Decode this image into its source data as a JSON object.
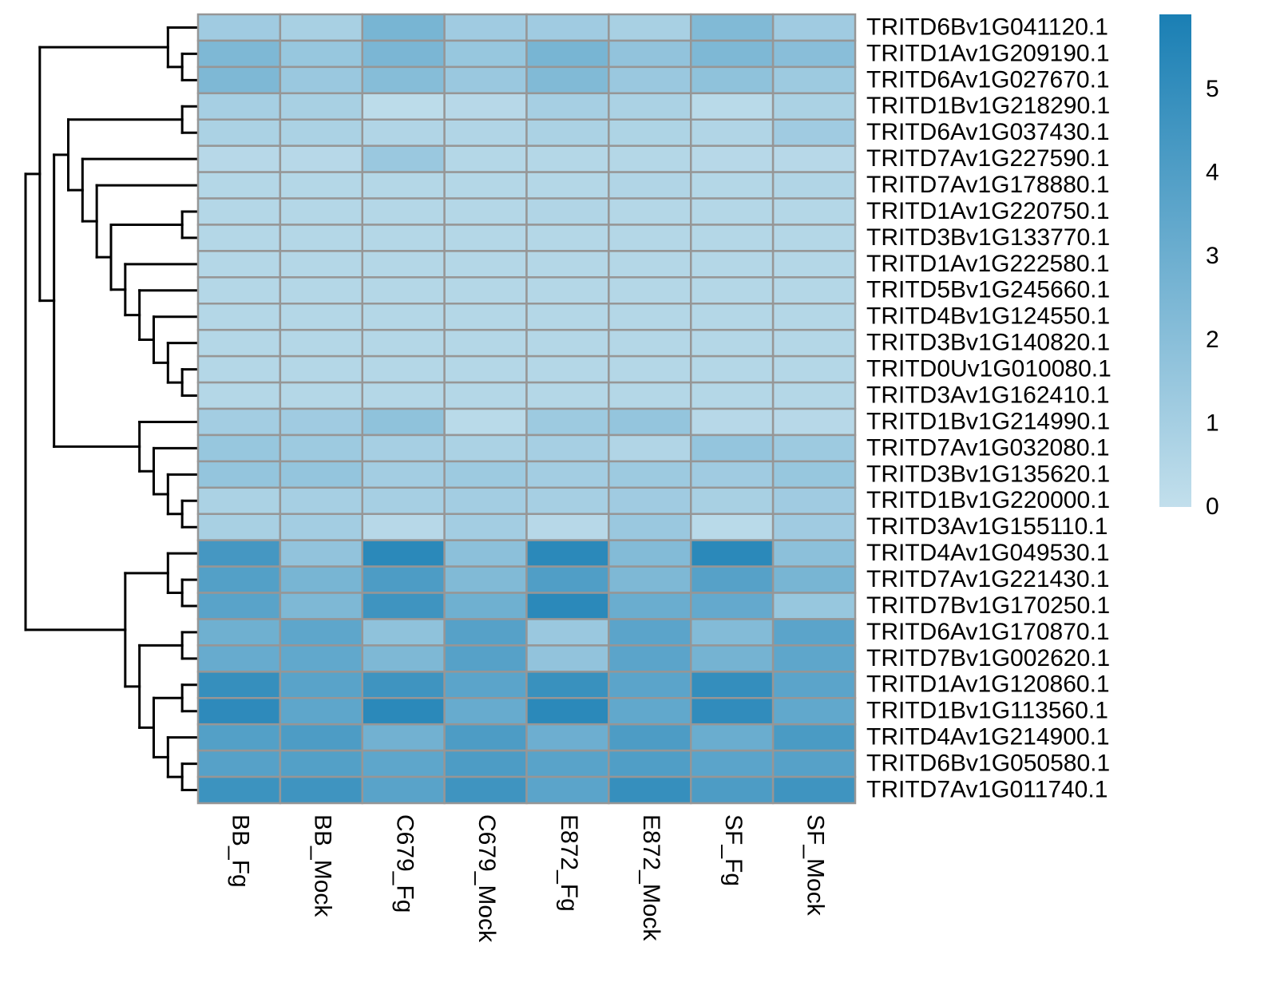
{
  "chart_data": {
    "type": "heatmap",
    "title": "",
    "columns": [
      "BB_Fg",
      "BB_Mock",
      "C679_Fg",
      "C679_Mock",
      "E872_Fg",
      "E872_Mock",
      "SF_Fg",
      "SF_Mock"
    ],
    "rows": [
      "TRITD6Bv1G041120.1",
      "TRITD1Av1G209190.1",
      "TRITD6Av1G027670.1",
      "TRITD1Bv1G218290.1",
      "TRITD6Av1G037430.1",
      "TRITD7Av1G227590.1",
      "TRITD7Av1G178880.1",
      "TRITD1Av1G220750.1",
      "TRITD3Bv1G133770.1",
      "TRITD1Av1G222580.1",
      "TRITD5Bv1G245660.1",
      "TRITD4Bv1G124550.1",
      "TRITD3Bv1G140820.1",
      "TRITD0Uv1G010080.1",
      "TRITD3Av1G162410.1",
      "TRITD1Bv1G214990.1",
      "TRITD7Av1G032080.1",
      "TRITD3Bv1G135620.1",
      "TRITD1Bv1G220000.1",
      "TRITD3Av1G155110.1",
      "TRITD4Av1G049530.1",
      "TRITD7Av1G221430.1",
      "TRITD7Bv1G170250.1",
      "TRITD6Av1G170870.1",
      "TRITD7Bv1G002620.1",
      "TRITD1Av1G120860.1",
      "TRITD1Bv1G113560.1",
      "TRITD4Av1G214900.1",
      "TRITD6Bv1G050580.1",
      "TRITD7Av1G011740.1"
    ],
    "values": [
      [
        1.2,
        0.9,
        2.6,
        1.2,
        1.2,
        0.9,
        2.3,
        1.2
      ],
      [
        2.4,
        1.5,
        2.5,
        1.5,
        2.6,
        1.7,
        2.4,
        2.0
      ],
      [
        2.4,
        1.4,
        2.1,
        1.4,
        2.3,
        1.4,
        1.8,
        1.3
      ],
      [
        1.0,
        0.9,
        0.2,
        0.4,
        1.0,
        0.8,
        0.3,
        0.8
      ],
      [
        0.8,
        0.8,
        0.6,
        0.6,
        0.8,
        0.7,
        0.6,
        1.2
      ],
      [
        0.4,
        0.4,
        1.4,
        0.5,
        0.5,
        0.5,
        0.4,
        0.4
      ],
      [
        0.5,
        0.5,
        0.5,
        0.5,
        0.5,
        0.6,
        0.5,
        0.6
      ],
      [
        0.5,
        0.5,
        0.5,
        0.5,
        0.6,
        0.5,
        0.5,
        0.5
      ],
      [
        0.5,
        0.5,
        0.5,
        0.5,
        0.5,
        0.5,
        0.5,
        0.5
      ],
      [
        0.5,
        0.5,
        0.5,
        0.5,
        0.5,
        0.5,
        0.5,
        0.5
      ],
      [
        0.5,
        0.5,
        0.5,
        0.5,
        0.5,
        0.5,
        0.5,
        0.5
      ],
      [
        0.5,
        0.5,
        0.5,
        0.5,
        0.5,
        0.5,
        0.5,
        0.5
      ],
      [
        0.5,
        0.5,
        0.5,
        0.5,
        0.5,
        0.5,
        0.5,
        0.5
      ],
      [
        0.5,
        0.5,
        0.5,
        0.5,
        0.5,
        0.5,
        0.5,
        0.5
      ],
      [
        0.5,
        0.5,
        0.5,
        0.5,
        0.5,
        0.5,
        0.5,
        0.5
      ],
      [
        1.1,
        1.2,
        1.8,
        0.3,
        1.3,
        1.6,
        0.4,
        0.4
      ],
      [
        1.5,
        1.3,
        1.0,
        0.8,
        1.0,
        0.6,
        1.6,
        1.3
      ],
      [
        1.6,
        1.6,
        1.1,
        1.3,
        1.1,
        1.3,
        1.2,
        1.5
      ],
      [
        0.8,
        1.0,
        1.0,
        1.1,
        1.0,
        1.2,
        0.9,
        1.2
      ],
      [
        0.9,
        1.1,
        0.4,
        1.1,
        0.4,
        1.4,
        0.3,
        1.2
      ],
      [
        4.4,
        1.7,
        5.3,
        1.9,
        5.3,
        2.2,
        5.3,
        1.9
      ],
      [
        3.9,
        2.6,
        4.1,
        2.3,
        4.0,
        2.4,
        3.8,
        2.6
      ],
      [
        3.7,
        2.4,
        4.6,
        2.9,
        5.3,
        3.1,
        3.3,
        1.5
      ],
      [
        2.9,
        3.5,
        1.8,
        3.8,
        1.4,
        3.6,
        2.2,
        3.6
      ],
      [
        3.2,
        3.4,
        2.4,
        3.8,
        1.7,
        3.6,
        2.7,
        3.5
      ],
      [
        4.9,
        3.7,
        4.6,
        3.6,
        4.8,
        3.6,
        5.0,
        3.6
      ],
      [
        5.2,
        3.5,
        5.3,
        3.2,
        5.3,
        3.4,
        5.1,
        3.4
      ],
      [
        3.9,
        4.1,
        2.8,
        4.1,
        3.0,
        4.1,
        3.1,
        4.2
      ],
      [
        3.8,
        3.9,
        3.5,
        4.1,
        3.7,
        4.0,
        3.6,
        3.8
      ],
      [
        4.7,
        4.6,
        3.7,
        4.6,
        3.6,
        4.9,
        4.1,
        4.6
      ]
    ],
    "color_scale": {
      "low_color": "#c2dfec",
      "high_color": "#1a7fb4",
      "range": [
        0,
        5.9
      ],
      "ticks": [
        0,
        1,
        2,
        3,
        4,
        5
      ]
    },
    "cell_border_color": "#969696",
    "row_dendrogram": true,
    "legend_placement": "right"
  }
}
